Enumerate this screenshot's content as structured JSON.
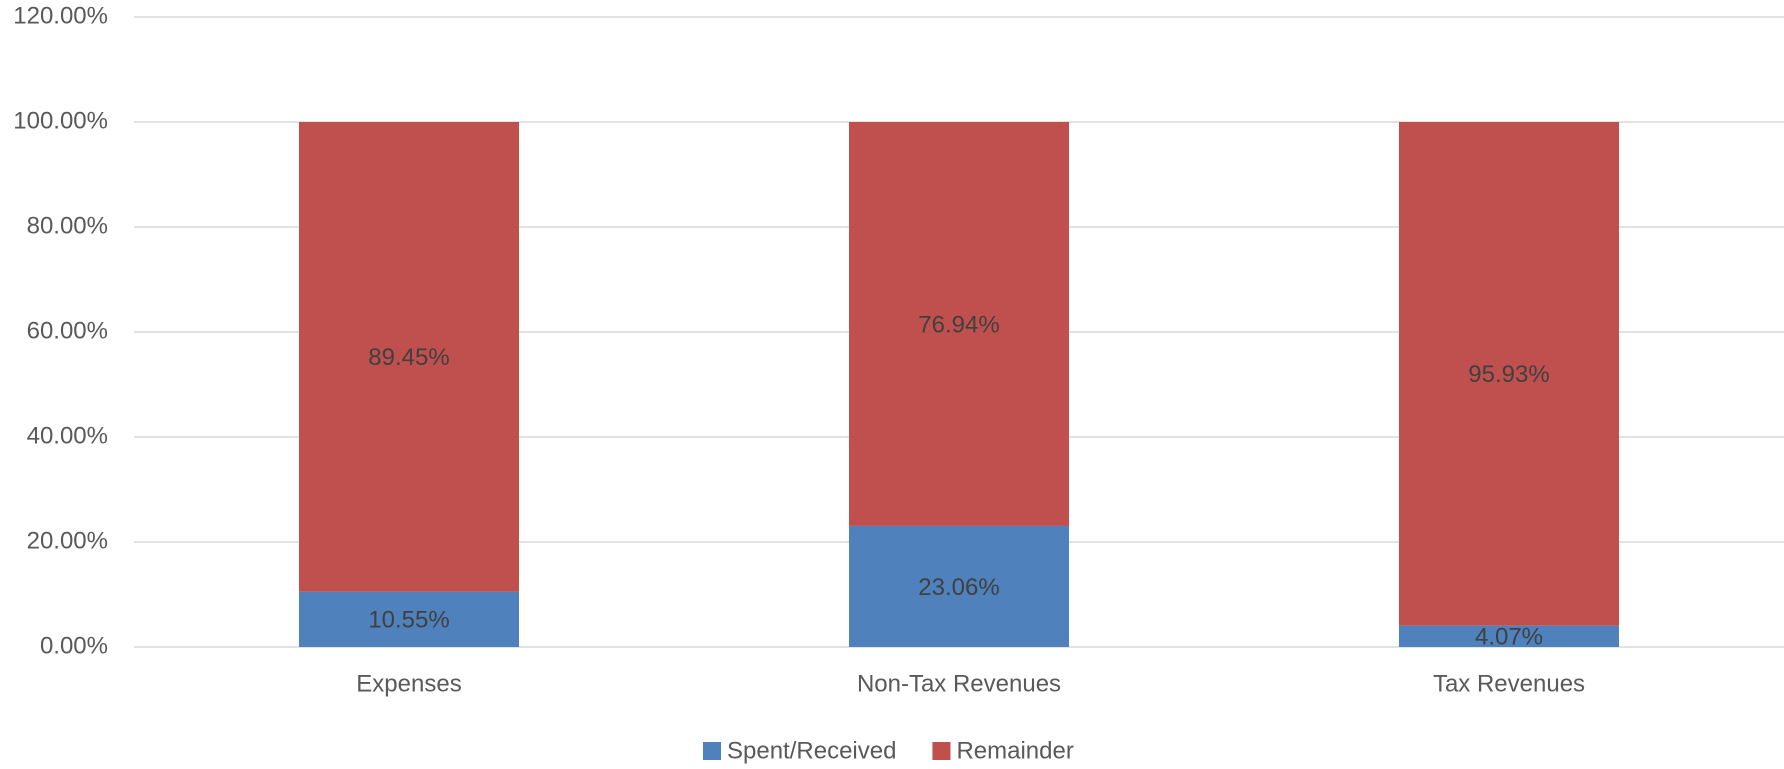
{
  "chart_data": {
    "type": "stacked_bar",
    "categories": [
      "Expenses",
      "Non-Tax Revenues",
      "Tax Revenues"
    ],
    "series": [
      {
        "name": "Spent/Received",
        "color": "#4f81bd",
        "values": [
          10.55,
          23.06,
          4.07
        ],
        "value_labels": [
          "10.55%",
          "23.06%",
          "4.07%"
        ]
      },
      {
        "name": "Remainder",
        "color": "#c0504d",
        "values": [
          89.45,
          76.94,
          95.93
        ],
        "value_labels": [
          "89.45%",
          "76.94%",
          "95.93%"
        ]
      }
    ],
    "ylim": [
      0,
      120
    ],
    "yticks": [
      {
        "value": 0,
        "label": "0.00%"
      },
      {
        "value": 20,
        "label": "20.00%"
      },
      {
        "value": 40,
        "label": "40.00%"
      },
      {
        "value": 60,
        "label": "60.00%"
      },
      {
        "value": 80,
        "label": "80.00%"
      },
      {
        "value": 100,
        "label": "100.00%"
      },
      {
        "value": 120,
        "label": "120.00%"
      }
    ],
    "grid": true,
    "legend": "bottom"
  }
}
